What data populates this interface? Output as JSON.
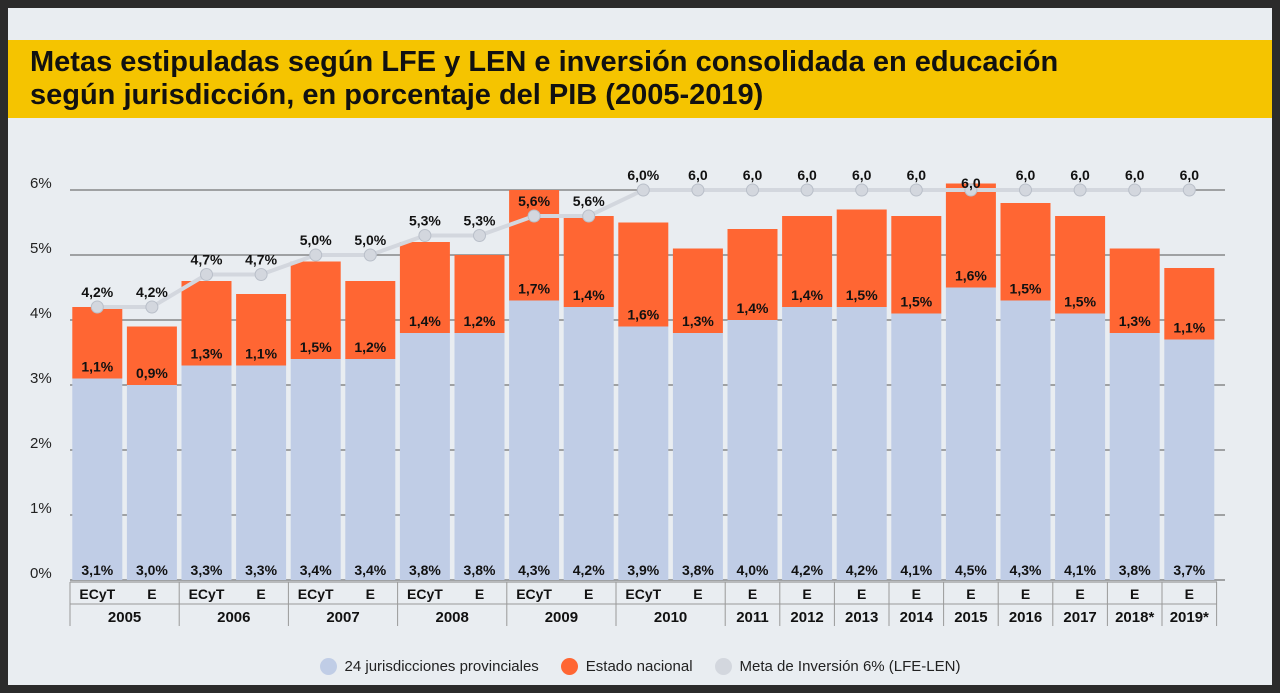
{
  "title": "Metas estipuladas según LFE y LEN e inversión consolidada en educación\nsegún jurisdicción, en porcentaje del PIB (2005-2019)",
  "colors": {
    "provincial": "#c0cde6",
    "nacional": "#ff6633",
    "meta": "#d3d7de",
    "frame": "#e9edf1",
    "title_bar": "#f5c400"
  },
  "chart_data": {
    "type": "bar",
    "stacked": true,
    "title": "Metas estipuladas según LFE y LEN e inversión consolidada en educación según jurisdicción, en porcentaje del PIB (2005-2019)",
    "ylim": [
      0,
      6
    ],
    "y_ticks": [
      "0%",
      "1%",
      "2%",
      "3%",
      "4%",
      "5%",
      "6%"
    ],
    "grid": true,
    "legend_position": "bottom",
    "categories": [
      {
        "sub": "ECyT",
        "group": "2005"
      },
      {
        "sub": "E",
        "group": "2005"
      },
      {
        "sub": "ECyT",
        "group": "2006"
      },
      {
        "sub": "E",
        "group": "2006"
      },
      {
        "sub": "ECyT",
        "group": "2007"
      },
      {
        "sub": "E",
        "group": "2007"
      },
      {
        "sub": "ECyT",
        "group": "2008"
      },
      {
        "sub": "E",
        "group": "2008"
      },
      {
        "sub": "ECyT",
        "group": "2009"
      },
      {
        "sub": "E",
        "group": "2009"
      },
      {
        "sub": "ECyT",
        "group": "2010"
      },
      {
        "sub": "E",
        "group": "2010"
      },
      {
        "sub": "E",
        "group": "2011"
      },
      {
        "sub": "E",
        "group": "2012"
      },
      {
        "sub": "E",
        "group": "2013"
      },
      {
        "sub": "E",
        "group": "2014"
      },
      {
        "sub": "E",
        "group": "2015"
      },
      {
        "sub": "E",
        "group": "2016"
      },
      {
        "sub": "E",
        "group": "2017"
      },
      {
        "sub": "E",
        "group": "2018*"
      },
      {
        "sub": "E",
        "group": "2019*"
      }
    ],
    "groups": [
      "2005",
      "2006",
      "2007",
      "2008",
      "2009",
      "2010",
      "2011",
      "2012",
      "2013",
      "2014",
      "2015",
      "2016",
      "2017",
      "2018*",
      "2019*"
    ],
    "series": [
      {
        "name": "24 jurisdicciones provinciales",
        "values": [
          3.1,
          3.0,
          3.3,
          3.3,
          3.4,
          3.4,
          3.8,
          3.8,
          4.3,
          4.2,
          3.9,
          3.8,
          4.0,
          4.2,
          4.2,
          4.1,
          4.5,
          4.3,
          4.1,
          3.8,
          3.7
        ],
        "labels": [
          "3,1%",
          "3,0%",
          "3,3%",
          "3,3%",
          "3,4%",
          "3,4%",
          "3,8%",
          "3,8%",
          "4,3%",
          "4,2%",
          "3,9%",
          "3,8%",
          "4,0%",
          "4,2%",
          "4,2%",
          "4,1%",
          "4,5%",
          "4,3%",
          "4,1%",
          "3,8%",
          "3,7%"
        ]
      },
      {
        "name": "Estado nacional",
        "values": [
          1.1,
          0.9,
          1.3,
          1.1,
          1.5,
          1.2,
          1.4,
          1.2,
          1.7,
          1.4,
          1.6,
          1.3,
          1.4,
          1.4,
          1.5,
          1.5,
          1.6,
          1.5,
          1.5,
          1.3,
          1.1
        ],
        "labels": [
          "1,1%",
          "0,9%",
          "1,3%",
          "1,1%",
          "1,5%",
          "1,2%",
          "1,4%",
          "1,2%",
          "1,7%",
          "1,4%",
          "1,6%",
          "1,3%",
          "1,4%",
          "1,4%",
          "1,5%",
          "1,5%",
          "1,6%",
          "1,5%",
          "1,5%",
          "1,3%",
          "1,1%"
        ]
      },
      {
        "name": "Meta de Inversión 6% (LFE-LEN)",
        "type": "line",
        "values": [
          4.2,
          4.2,
          4.7,
          4.7,
          5.0,
          5.0,
          5.3,
          5.3,
          5.6,
          5.6,
          6.0,
          6.0,
          6.0,
          6.0,
          6.0,
          6.0,
          6.0,
          6.0,
          6.0,
          6.0,
          6.0
        ],
        "labels": [
          "4,2%",
          "4,2%",
          "4,7%",
          "4,7%",
          "5,0%",
          "5,0%",
          "5,3%",
          "5,3%",
          "5,6%",
          "5,6%",
          "6,0%",
          "6,0",
          "6,0",
          "6,0",
          "6,0",
          "6,0",
          "6,0",
          "6,0",
          "6,0",
          "6,0",
          "6,0"
        ]
      }
    ]
  }
}
